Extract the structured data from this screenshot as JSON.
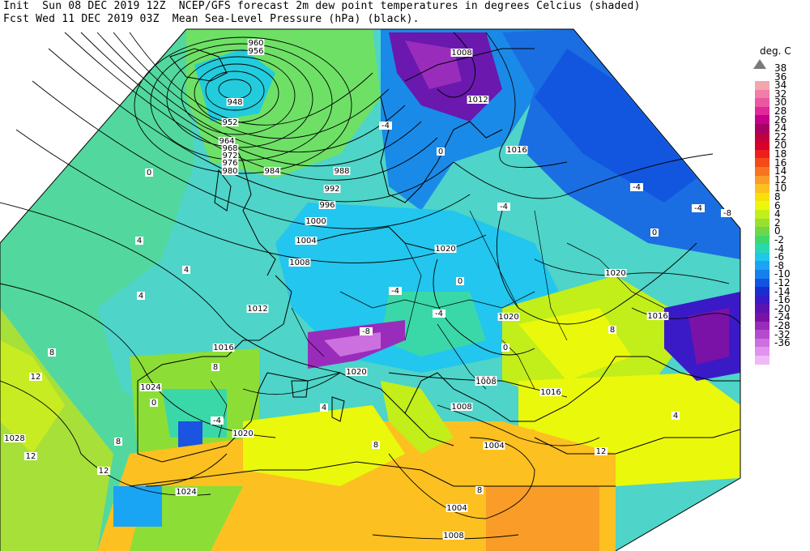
{
  "header": {
    "line1": "Init  Sun 08 DEC 2019 12Z  NCEP/GFS forecast 2m dew point temperatures in degrees Celcius (shaded)",
    "line2": "Fcst Wed 11 DEC 2019 03Z  Mean Sea-Level Pressure (hPa) (black)."
  },
  "legend": {
    "unit": "deg. C",
    "labels": [
      "38",
      "36",
      "34",
      "32",
      "30",
      "28",
      "26",
      "24",
      "22",
      "20",
      "18",
      "16",
      "14",
      "12",
      "10",
      "8",
      "6",
      "4",
      "2",
      "0",
      "-2",
      "-4",
      "-6",
      "-8",
      "-10",
      "-12",
      "-14",
      "-16",
      "-20",
      "-24",
      "-28",
      "-32",
      "-36"
    ],
    "colors": [
      "#f4a6ae",
      "#f07ea8",
      "#ec57a2",
      "#e0289a",
      "#c6008c",
      "#a60064",
      "#c20040",
      "#d8002a",
      "#ee1e1e",
      "#f44a18",
      "#f87420",
      "#fa9c28",
      "#fcc020",
      "#f8e008",
      "#eaf80c",
      "#c2ee1a",
      "#98e030",
      "#6ed648",
      "#3ed86a",
      "#2ad8b0",
      "#20c8e8",
      "#1aa4f4",
      "#1680ee",
      "#1254e0",
      "#1a2ed0",
      "#3a1ac6",
      "#5a14b4",
      "#7a12a8",
      "#9a2cbc",
      "#b44cd0",
      "#cc70e0",
      "#e094ee",
      "#f0b8f8"
    ]
  },
  "isobars": [
    "940",
    "944",
    "948",
    "952",
    "956",
    "960",
    "964",
    "968",
    "972",
    "976",
    "980",
    "984",
    "988",
    "992",
    "996",
    "1000",
    "1004",
    "1008",
    "1012",
    "1016",
    "1020",
    "1024",
    "1028"
  ],
  "isobar_labels": [
    {
      "text": "948"
    },
    {
      "text": "952"
    },
    {
      "text": "956"
    },
    {
      "text": "960"
    },
    {
      "text": "964"
    },
    {
      "text": "968"
    },
    {
      "text": "972"
    },
    {
      "text": "976"
    },
    {
      "text": "980"
    },
    {
      "text": "984"
    },
    {
      "text": "988"
    },
    {
      "text": "992"
    },
    {
      "text": "996"
    },
    {
      "text": "1000"
    },
    {
      "text": "1004"
    },
    {
      "text": "1008"
    },
    {
      "text": "1008"
    },
    {
      "text": "1012"
    },
    {
      "text": "1012"
    },
    {
      "text": "1016"
    },
    {
      "text": "1016"
    },
    {
      "text": "1016"
    },
    {
      "text": "1016"
    },
    {
      "text": "1016"
    },
    {
      "text": "1020"
    },
    {
      "text": "1020"
    },
    {
      "text": "1020"
    },
    {
      "text": "1020"
    },
    {
      "text": "1020"
    },
    {
      "text": "1024"
    },
    {
      "text": "1024"
    },
    {
      "text": "1028"
    },
    {
      "text": "1008"
    },
    {
      "text": "1004"
    },
    {
      "text": "1004"
    },
    {
      "text": "1008"
    },
    {
      "text": "1008"
    }
  ],
  "dewpoint_labels": [
    {
      "text": "0"
    },
    {
      "text": "4"
    },
    {
      "text": "4"
    },
    {
      "text": "8"
    },
    {
      "text": "12"
    },
    {
      "text": "12"
    },
    {
      "text": "8"
    },
    {
      "text": "-4"
    },
    {
      "text": "0"
    },
    {
      "text": "-4"
    },
    {
      "text": "4"
    },
    {
      "text": "8"
    },
    {
      "text": "-4"
    },
    {
      "text": "0"
    },
    {
      "text": "-4"
    },
    {
      "text": "-8"
    },
    {
      "text": "0"
    },
    {
      "text": "-4"
    },
    {
      "text": "0"
    },
    {
      "text": "4"
    },
    {
      "text": "8"
    },
    {
      "text": "8"
    },
    {
      "text": "12"
    },
    {
      "text": "4"
    },
    {
      "text": "-4"
    },
    {
      "text": "-8"
    },
    {
      "text": "0"
    },
    {
      "text": "-4"
    },
    {
      "text": "8"
    },
    {
      "text": "12"
    }
  ]
}
